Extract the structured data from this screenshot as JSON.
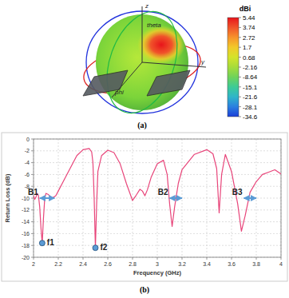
{
  "chart_data": [
    {
      "type": "radiation_pattern",
      "label": "(a)",
      "annotations": [
        "z",
        "theta",
        "y",
        "phi"
      ],
      "colorbar_title": "dBi",
      "colorbar_ticks": [
        5.44,
        3.74,
        2.72,
        1.7,
        0.68,
        -2.16,
        -8.64,
        -15.1,
        -21.6,
        -28.1,
        -34.6
      ]
    },
    {
      "type": "line",
      "label": "(b)",
      "xlabel": "Frequency (GHz)",
      "ylabel": "Return Loss (dB)",
      "xlim": [
        2,
        4
      ],
      "xticks": [
        2,
        2.2,
        2.4,
        2.6,
        2.8,
        3,
        3.2,
        3.4,
        3.6,
        3.8,
        4
      ],
      "ylim": [
        -20,
        0
      ],
      "yticks": [
        -20,
        -18,
        -16,
        -14,
        -12,
        -10,
        -8,
        -6,
        -4,
        -2,
        0
      ],
      "grid": true,
      "x": [
        2.0,
        2.01,
        2.02,
        2.03,
        2.04,
        2.05,
        2.06,
        2.07,
        2.08,
        2.09,
        2.1,
        2.12,
        2.15,
        2.18,
        2.2,
        2.25,
        2.3,
        2.35,
        2.4,
        2.45,
        2.47,
        2.48,
        2.49,
        2.5,
        2.51,
        2.52,
        2.55,
        2.6,
        2.65,
        2.7,
        2.75,
        2.8,
        2.83,
        2.86,
        2.88,
        2.9,
        2.92,
        2.95,
        3.0,
        3.05,
        3.08,
        3.1,
        3.12,
        3.14,
        3.17,
        3.2,
        3.3,
        3.4,
        3.45,
        3.48,
        3.5,
        3.52,
        3.55,
        3.6,
        3.65,
        3.68,
        3.71,
        3.75,
        3.8,
        3.85,
        3.9,
        3.95,
        4.0
      ],
      "series": [
        {
          "color": "#e8457a",
          "values": [
            -9.6,
            -10.2,
            -9.8,
            -9.2,
            -9.6,
            -11.5,
            -15.0,
            -17.6,
            -13.5,
            -10.2,
            -9.2,
            -9.4,
            -10.0,
            -9.6,
            -8.8,
            -6.8,
            -4.8,
            -2.8,
            -1.8,
            -1.6,
            -2.2,
            -4.0,
            -10.0,
            -18.4,
            -11.0,
            -5.5,
            -2.8,
            -1.9,
            -2.3,
            -4.2,
            -7.5,
            -10.4,
            -9.5,
            -8.5,
            -8.8,
            -9.6,
            -8.6,
            -6.5,
            -4.2,
            -3.6,
            -6.0,
            -11.0,
            -14.8,
            -11.5,
            -7.5,
            -5.2,
            -2.6,
            -1.8,
            -2.5,
            -5.0,
            -12.5,
            -6.0,
            -2.6,
            -5.5,
            -11.0,
            -15.6,
            -13.0,
            -9.0,
            -7.2,
            -6.0,
            -5.6,
            -5.2,
            -5.9
          ]
        }
      ],
      "points": [
        {
          "label": "f1",
          "x": 2.07,
          "y": -17.6,
          "color": "#5b9bd5"
        },
        {
          "label": "f2",
          "x": 2.5,
          "y": -18.4,
          "color": "#5b9bd5"
        }
      ],
      "bands": [
        {
          "label": "B1",
          "x": [
            2.05,
            2.17
          ],
          "y": -10,
          "color": "#5b9bd5"
        },
        {
          "label": "B2",
          "x": [
            3.1,
            3.2
          ],
          "y": -10,
          "color": "#5b9bd5"
        },
        {
          "label": "B3",
          "x": [
            3.7,
            3.8
          ],
          "y": -10,
          "color": "#5b9bd5"
        }
      ]
    }
  ]
}
